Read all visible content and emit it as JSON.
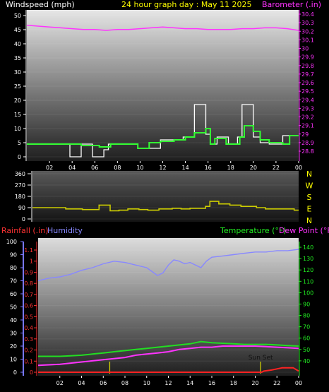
{
  "header": {
    "windspeed_label": "Windspeed (mph)",
    "title": "24 hour graph day : May 11 2025",
    "barometer_label": "Barometer (.in)"
  },
  "colors": {
    "wind_speed": "#ffffff",
    "wind_gust": "#cfcfcf",
    "wind_avg": "#33ff33",
    "barometer": "#ff33ff",
    "direction": "#cccc00",
    "humidity": "#8888ff",
    "temperature": "#22dd22",
    "dewpoint": "#ff33ff",
    "rainfall": "#ff2222",
    "axis_yellow": "#ffff00",
    "axis_blue": "#7777ff",
    "axis_green": "#22ee22",
    "axis_red": "#ff3333",
    "axis_magenta": "#ff33ff",
    "event_line": "#dddd00"
  },
  "x_ticks": [
    "02",
    "04",
    "06",
    "08",
    "10",
    "12",
    "14",
    "16",
    "18",
    "20",
    "22",
    "00"
  ],
  "chart_data": [
    {
      "type": "line",
      "panel": "wind-barometer",
      "x_range_hours": [
        0,
        24
      ],
      "y_left": {
        "label": "Windspeed (mph)",
        "ticks": [
          "0",
          "5",
          "10",
          "15",
          "20",
          "25",
          "30",
          "35",
          "40",
          "45",
          "50"
        ],
        "range": [
          0,
          50
        ]
      },
      "y_right": {
        "label": "Barometer (.in)",
        "ticks": [
          "28.8",
          "28.9",
          "29",
          "29.1",
          "29.2",
          "29.3",
          "29.4",
          "29.5",
          "29.6",
          "29.7",
          "29.8",
          "29.9",
          "30",
          "30.1",
          "30.2",
          "30.3",
          "30.4"
        ],
        "range": [
          28.8,
          30.4
        ]
      },
      "series": [
        {
          "name": "Windspeed (mph)",
          "step": true,
          "x": [
            0,
            3.8,
            4.8,
            5.8,
            6.8,
            7.2,
            8.6,
            9.8,
            11.8,
            13.0,
            13.8,
            14.8,
            15.8,
            16.2,
            16.8,
            17.8,
            18.6,
            19.0,
            20.0,
            20.6,
            21.4,
            22.6,
            23.2,
            24
          ],
          "y": [
            4.5,
            0,
            4.5,
            0,
            2.5,
            4.5,
            4.5,
            3,
            6,
            6,
            7,
            18.5,
            8,
            4.5,
            7,
            4.5,
            7,
            18.5,
            7,
            5,
            4.5,
            7.5,
            7.5,
            7.5
          ]
        },
        {
          "name": "Average wind",
          "step": true,
          "x": [
            0,
            4.8,
            6.4,
            7.4,
            8.0,
            9.8,
            10.8,
            11.8,
            13.0,
            14.0,
            14.8,
            15.8,
            16.2,
            16.6,
            17.6,
            18.8,
            19.2,
            20.0,
            20.6,
            21.4,
            22.6,
            23.2,
            24
          ],
          "y": [
            4.5,
            4,
            3.5,
            4.5,
            4.5,
            3,
            5,
            5.5,
            6,
            7,
            8.5,
            10,
            4.5,
            6.5,
            4.5,
            7,
            11,
            9,
            6,
            5,
            4.5,
            7.5,
            7.5
          ]
        },
        {
          "name": "Barometer (.in)",
          "x": [
            0,
            1,
            2,
            3,
            4,
            5,
            6,
            7,
            8,
            9,
            10,
            11,
            12,
            13,
            14,
            15,
            16,
            17,
            18,
            19,
            20,
            21,
            22,
            23,
            24
          ],
          "y": [
            30.27,
            30.26,
            30.25,
            30.24,
            30.23,
            30.22,
            30.22,
            30.21,
            30.22,
            30.22,
            30.23,
            30.24,
            30.25,
            30.24,
            30.23,
            30.23,
            30.22,
            30.22,
            30.22,
            30.23,
            30.23,
            30.24,
            30.24,
            30.23,
            30.21
          ]
        }
      ]
    },
    {
      "type": "line",
      "panel": "wind-direction",
      "x_range_hours": [
        0,
        24
      ],
      "y_left": {
        "ticks": [
          "360",
          "270",
          "180",
          "90",
          "0"
        ],
        "range": [
          0,
          360
        ]
      },
      "y_right_labels": [
        "N",
        "W",
        "S",
        "E",
        "N"
      ],
      "series": [
        {
          "name": "Wind direction",
          "step": true,
          "x": [
            0,
            3.0,
            4.5,
            6.0,
            7.0,
            7.8,
            8.6,
            9.6,
            10.4,
            11.4,
            12.6,
            13.4,
            14.2,
            15.6,
            16.0,
            16.8,
            17.8,
            18.8,
            20.2,
            21.0,
            23.6,
            24
          ],
          "y": [
            90,
            80,
            75,
            110,
            65,
            70,
            80,
            75,
            70,
            80,
            85,
            80,
            85,
            100,
            140,
            120,
            110,
            100,
            90,
            80,
            70,
            70
          ]
        }
      ]
    },
    {
      "type": "line",
      "panel": "temperature-humidity-rain",
      "x_range_hours": [
        0,
        24
      ],
      "legend": [
        "Rainfall (.in)",
        "Humidity",
        "Temperature (°F)",
        "Dew Point (°F)"
      ],
      "y_rain": {
        "label": "Rainfall (.in)",
        "ticks": [
          "0",
          "0.1",
          "0.2",
          "0.3",
          "0.4",
          "0.5",
          "0.6",
          "0.7",
          "0.8",
          "0.9",
          "1",
          "1.1"
        ],
        "range": [
          0,
          1.1
        ]
      },
      "y_humidity": {
        "label": "Humidity",
        "ticks": [
          "0",
          "10",
          "20",
          "30",
          "40",
          "50",
          "60",
          "70",
          "80",
          "90",
          "100"
        ],
        "range": [
          0,
          100
        ]
      },
      "y_temp": {
        "label": "Temperature (°F) Dew Point (°F)",
        "ticks": [
          "40",
          "50",
          "60",
          "70",
          "80",
          "90",
          "100",
          "110",
          "120",
          "130",
          "140"
        ],
        "range": [
          30,
          145
        ]
      },
      "series": [
        {
          "name": "Humidity",
          "x": [
            0,
            1,
            2,
            3,
            4,
            5,
            6,
            7,
            8,
            9,
            10,
            10.5,
            11,
            11.5,
            12,
            12.5,
            13,
            13.5,
            14,
            15,
            15.5,
            16,
            17,
            18,
            19,
            20,
            21,
            22,
            23,
            24
          ],
          "y": [
            70,
            72,
            73,
            75,
            78,
            80,
            83,
            85,
            84,
            82,
            80,
            77,
            74,
            76,
            82,
            86,
            85,
            83,
            84,
            80,
            85,
            88,
            89,
            90,
            91,
            92,
            92,
            93,
            93,
            94
          ]
        },
        {
          "name": "Temperature (°F)",
          "x": [
            0,
            1,
            2,
            3,
            4,
            5,
            6,
            7,
            8,
            9,
            10,
            11,
            12,
            13,
            14,
            15,
            16,
            17,
            18,
            19,
            20,
            21,
            22,
            23,
            24
          ],
          "y": [
            44,
            44,
            44,
            44.5,
            45,
            46,
            47,
            48,
            49,
            50,
            51,
            52,
            53,
            54,
            55,
            57,
            56,
            55.5,
            55,
            54.5,
            54.5,
            54.5,
            54,
            53.5,
            53
          ]
        },
        {
          "name": "Dew Point (°F)",
          "x": [
            0,
            1,
            2,
            3,
            4,
            5,
            6,
            7,
            8,
            9,
            10,
            11,
            12,
            13,
            14,
            15,
            16,
            17,
            18,
            19,
            20,
            21,
            22,
            23,
            24
          ],
          "y": [
            36,
            36.5,
            37,
            38,
            39,
            40,
            41,
            42,
            43,
            45,
            46,
            47,
            48,
            50,
            51,
            52,
            52,
            53,
            53,
            53,
            53,
            52.5,
            52,
            51.5,
            51
          ]
        },
        {
          "name": "Rainfall (.in)",
          "x": [
            0,
            20.6,
            20.8,
            21.5,
            22.0,
            22.5,
            23.5,
            24
          ],
          "y": [
            0,
            0,
            0.01,
            0.02,
            0.03,
            0.04,
            0.04,
            0.01
          ]
        }
      ],
      "events": [
        {
          "hour": 6.6,
          "label": ""
        },
        {
          "hour": 20.5,
          "label": "Sun Set"
        }
      ]
    }
  ]
}
